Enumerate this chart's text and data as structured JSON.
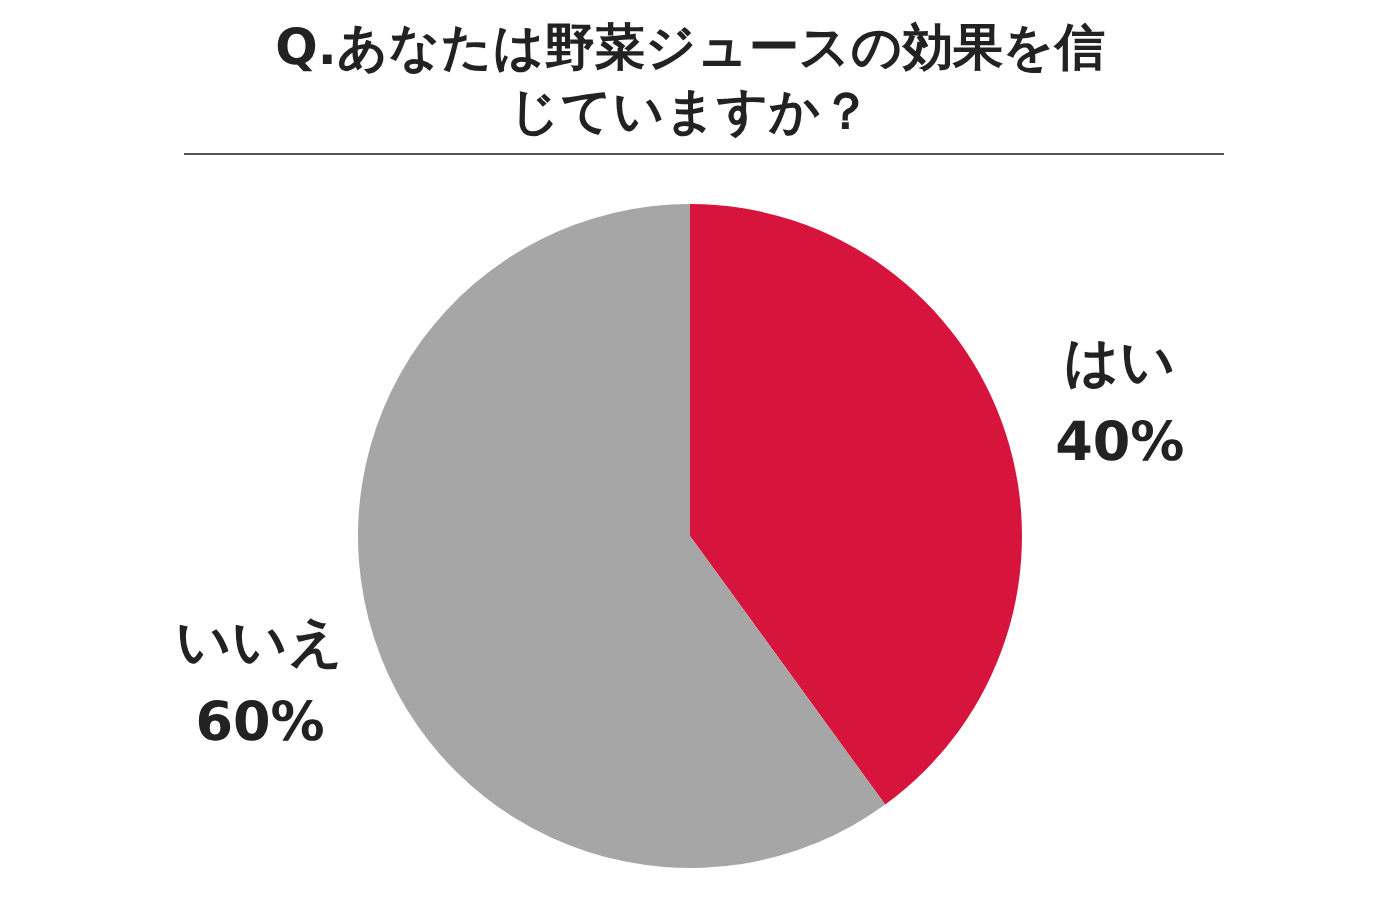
{
  "chart_data": {
    "type": "pie",
    "title": "Q.あなたは野菜ジュースの効果を信じていますか？",
    "categories": [
      "はい",
      "いいえ"
    ],
    "values": [
      40,
      60
    ],
    "colors": [
      "#d7143c",
      "#a6a6a6"
    ],
    "value_labels": [
      "40%",
      "60%"
    ]
  }
}
